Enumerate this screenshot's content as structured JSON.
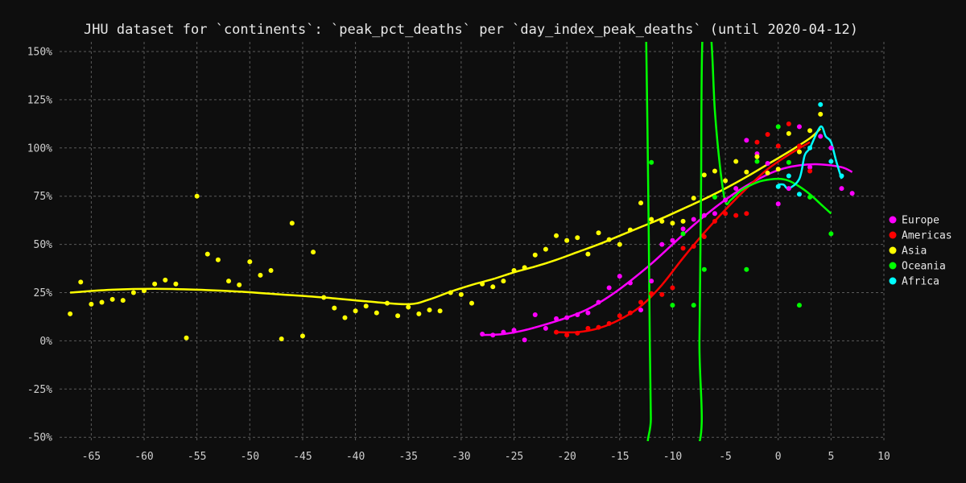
{
  "chart_data": {
    "type": "scatter",
    "title": "JHU dataset for `continents`: `peak_pct_deaths` per `day_index_peak_deaths` (until 2020-04-12)",
    "xlabel": "",
    "ylabel": "",
    "xlim": [
      -68,
      10
    ],
    "ylim": [
      -52,
      155
    ],
    "grid": true,
    "legend_position": "right",
    "x_ticks": [
      -65,
      -60,
      -55,
      -50,
      -45,
      -40,
      -35,
      -30,
      -25,
      -20,
      -15,
      -10,
      -5,
      0,
      5,
      10
    ],
    "x_tick_labels": [
      "-65",
      "-60",
      "-55",
      "-50",
      "-45",
      "-40",
      "-35",
      "-30",
      "-25",
      "-20",
      "-15",
      "-10",
      "-5",
      "0",
      "5",
      "10"
    ],
    "y_ticks": [
      150,
      125,
      100,
      75,
      50,
      25,
      0,
      -25,
      -50
    ],
    "y_tick_labels": [
      "150%",
      "125%",
      "100%",
      "75%",
      "50%",
      "25%",
      "0%",
      "-25%",
      "-50%"
    ],
    "series": [
      {
        "name": "Europe",
        "color": "#ff00ff",
        "points": [
          [
            -28,
            3.5
          ],
          [
            -27,
            3
          ],
          [
            -26,
            4.5
          ],
          [
            -25,
            5.5
          ],
          [
            -24,
            0.5
          ],
          [
            -23,
            13.5
          ],
          [
            -22,
            6.5
          ],
          [
            -21,
            11.5
          ],
          [
            -20,
            12
          ],
          [
            -19,
            13.5
          ],
          [
            -18,
            14.5
          ],
          [
            -17,
            20
          ],
          [
            -16,
            27.5
          ],
          [
            -15,
            33.5
          ],
          [
            -14,
            30
          ],
          [
            -13,
            16
          ],
          [
            -12,
            31
          ],
          [
            -11,
            50
          ],
          [
            -10,
            52
          ],
          [
            -9,
            58
          ],
          [
            -8,
            63
          ],
          [
            -7,
            65
          ],
          [
            -6,
            66
          ],
          [
            -5,
            73
          ],
          [
            -4,
            79
          ],
          [
            -3,
            104
          ],
          [
            -2,
            97
          ],
          [
            -1,
            92
          ],
          [
            0,
            71
          ],
          [
            1,
            79
          ],
          [
            2,
            111
          ],
          [
            3,
            90
          ],
          [
            4,
            106
          ],
          [
            5,
            100
          ],
          [
            6,
            79
          ],
          [
            7,
            76.5
          ]
        ],
        "fit": [
          [
            -28,
            3
          ],
          [
            -26,
            3.5
          ],
          [
            -24,
            5.5
          ],
          [
            -22,
            8.5
          ],
          [
            -20,
            12
          ],
          [
            -18,
            16.5
          ],
          [
            -16,
            23
          ],
          [
            -14,
            31
          ],
          [
            -12,
            40
          ],
          [
            -10,
            50
          ],
          [
            -8,
            60
          ],
          [
            -6,
            69
          ],
          [
            -4,
            77
          ],
          [
            -2,
            83.5
          ],
          [
            0,
            88.5
          ],
          [
            2,
            91
          ],
          [
            4,
            91.5
          ],
          [
            6,
            90
          ],
          [
            7,
            87.5
          ]
        ]
      },
      {
        "name": "Americas",
        "color": "#ff0000",
        "points": [
          [
            -21,
            4.5
          ],
          [
            -20,
            3
          ],
          [
            -19,
            4
          ],
          [
            -18,
            6.5
          ],
          [
            -17,
            7
          ],
          [
            -16,
            9
          ],
          [
            -15,
            13
          ],
          [
            -14,
            14.5
          ],
          [
            -13,
            20
          ],
          [
            -12,
            24.5
          ],
          [
            -11,
            24
          ],
          [
            -10,
            27.5
          ],
          [
            -9,
            48
          ],
          [
            -8,
            49
          ],
          [
            -7,
            54
          ],
          [
            -6,
            62
          ],
          [
            -5,
            66
          ],
          [
            -4,
            65
          ],
          [
            -3,
            66
          ],
          [
            -2,
            103
          ],
          [
            -1,
            107
          ],
          [
            0,
            101
          ],
          [
            1,
            112.5
          ],
          [
            2,
            101
          ],
          [
            3,
            88
          ]
        ],
        "fit": [
          [
            -21,
            4.5
          ],
          [
            -19,
            4.5
          ],
          [
            -17,
            6.5
          ],
          [
            -15,
            11
          ],
          [
            -13,
            18
          ],
          [
            -11,
            29
          ],
          [
            -9,
            43
          ],
          [
            -7,
            56
          ],
          [
            -5,
            68
          ],
          [
            -3,
            79
          ],
          [
            -1,
            89
          ],
          [
            1,
            96.5
          ],
          [
            3,
            103
          ]
        ]
      },
      {
        "name": "Asia",
        "color": "#ffff00",
        "points": [
          [
            -67,
            14
          ],
          [
            -66,
            30.5
          ],
          [
            -65,
            19
          ],
          [
            -64,
            20
          ],
          [
            -63,
            21.5
          ],
          [
            -62,
            21
          ],
          [
            -61,
            25
          ],
          [
            -60,
            26
          ],
          [
            -59,
            29.5
          ],
          [
            -58,
            31.5
          ],
          [
            -57,
            29.5
          ],
          [
            -56,
            1.5
          ],
          [
            -55,
            75
          ],
          [
            -54,
            45
          ],
          [
            -53,
            42
          ],
          [
            -52,
            31
          ],
          [
            -51,
            29
          ],
          [
            -50,
            41
          ],
          [
            -49,
            34
          ],
          [
            -48,
            36.5
          ],
          [
            -47,
            1
          ],
          [
            -46,
            61
          ],
          [
            -45,
            2.5
          ],
          [
            -44,
            46
          ],
          [
            -43,
            22.5
          ],
          [
            -42,
            17
          ],
          [
            -41,
            12
          ],
          [
            -40,
            15.5
          ],
          [
            -39,
            18
          ],
          [
            -38,
            14.5
          ],
          [
            -37,
            19.5
          ],
          [
            -36,
            13
          ],
          [
            -35,
            17.5
          ],
          [
            -34,
            14
          ],
          [
            -33,
            16
          ],
          [
            -32,
            15.5
          ],
          [
            -31,
            25
          ],
          [
            -30,
            24
          ],
          [
            -29,
            19.5
          ],
          [
            -28,
            29.5
          ],
          [
            -27,
            28
          ],
          [
            -26,
            31
          ],
          [
            -25,
            36.5
          ],
          [
            -24,
            38
          ],
          [
            -23,
            44.5
          ],
          [
            -22,
            47.5
          ],
          [
            -21,
            54.5
          ],
          [
            -20,
            52
          ],
          [
            -19,
            53.5
          ],
          [
            -18,
            45
          ],
          [
            -17,
            56
          ],
          [
            -16,
            52.5
          ],
          [
            -15,
            50
          ],
          [
            -14,
            57.5
          ],
          [
            -13,
            71.5
          ],
          [
            -12,
            63
          ],
          [
            -11,
            62
          ],
          [
            -10,
            61
          ],
          [
            -9,
            62
          ],
          [
            -8,
            74
          ],
          [
            -7,
            86
          ],
          [
            -6,
            88
          ],
          [
            -5,
            83
          ],
          [
            -4,
            93
          ],
          [
            -3,
            87.5
          ],
          [
            -2,
            95.5
          ],
          [
            -1,
            87
          ],
          [
            0,
            89
          ],
          [
            1,
            107.5
          ],
          [
            2,
            98
          ],
          [
            3,
            109
          ],
          [
            4,
            117.5
          ]
        ],
        "fit": [
          [
            -67,
            25
          ],
          [
            -63,
            26.5
          ],
          [
            -59,
            27
          ],
          [
            -55,
            26.5
          ],
          [
            -51,
            25.5
          ],
          [
            -47,
            24
          ],
          [
            -43,
            22.5
          ],
          [
            -39,
            20.5
          ],
          [
            -35,
            19
          ],
          [
            -33,
            21.5
          ],
          [
            -31,
            25.5
          ],
          [
            -29,
            29
          ],
          [
            -27,
            32
          ],
          [
            -25,
            35.5
          ],
          [
            -23,
            38.5
          ],
          [
            -21,
            42
          ],
          [
            -19,
            46
          ],
          [
            -17,
            50
          ],
          [
            -15,
            54.5
          ],
          [
            -13,
            59
          ],
          [
            -11,
            63.5
          ],
          [
            -9,
            68.5
          ],
          [
            -7,
            73.5
          ],
          [
            -5,
            79
          ],
          [
            -3,
            85
          ],
          [
            -1,
            91.5
          ],
          [
            1,
            98
          ],
          [
            3,
            105
          ],
          [
            4,
            110
          ]
        ]
      },
      {
        "name": "Oceania",
        "color": "#00ff00",
        "points": [
          [
            -12,
            92.5
          ],
          [
            -10,
            18.5
          ],
          [
            -9,
            55.5
          ],
          [
            -8,
            18.5
          ],
          [
            -7,
            37
          ],
          [
            -6,
            74.5
          ],
          [
            -3,
            37
          ],
          [
            -2,
            93
          ],
          [
            0,
            111
          ],
          [
            1,
            92.5
          ],
          [
            2,
            18.5
          ],
          [
            3,
            74.5
          ],
          [
            5,
            55.5
          ]
        ],
        "fit": [
          [
            -12.5,
            160
          ],
          [
            -12.3,
            80
          ],
          [
            -12.15,
            0
          ],
          [
            -12.05,
            -40
          ],
          [
            -12,
            -55
          ],
          [
            -7.6,
            -55
          ],
          [
            -7.45,
            0
          ],
          [
            -7.3,
            80
          ],
          [
            -7.15,
            160
          ],
          [
            -6.4,
            160
          ],
          [
            -6,
            120
          ],
          [
            -5.5,
            90
          ],
          [
            -5,
            72
          ],
          [
            -4.5,
            73
          ],
          [
            -3.5,
            78
          ],
          [
            -2.5,
            81
          ],
          [
            -1.5,
            83
          ],
          [
            0,
            84
          ],
          [
            1,
            83
          ],
          [
            2,
            80
          ],
          [
            3,
            76
          ],
          [
            4,
            71
          ],
          [
            5,
            66
          ]
        ]
      },
      {
        "name": "Africa",
        "color": "#00ffff",
        "points": [
          [
            0,
            80
          ],
          [
            1,
            85.5
          ],
          [
            2,
            76
          ],
          [
            3,
            100
          ],
          [
            4,
            122.5
          ],
          [
            5,
            93
          ],
          [
            6,
            85.5
          ]
        ],
        "fit": [
          [
            0,
            81
          ],
          [
            0.5,
            81
          ],
          [
            1,
            79
          ],
          [
            2,
            84
          ],
          [
            2.5,
            96
          ],
          [
            3,
            100
          ],
          [
            4,
            111
          ],
          [
            4.5,
            106
          ],
          [
            5,
            103
          ],
          [
            5.5,
            93
          ],
          [
            6,
            84
          ]
        ]
      }
    ]
  }
}
